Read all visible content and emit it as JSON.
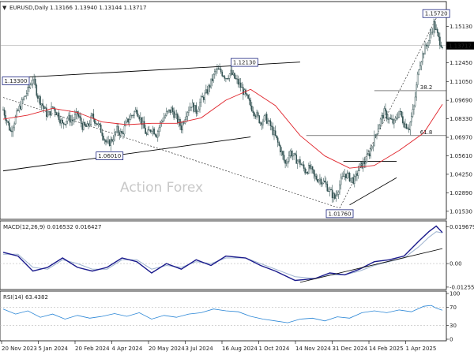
{
  "symbol_line": {
    "symbol": "EURUSD,Daily",
    "ohlc": "1.13166 1.13940 1.13144 1.13717"
  },
  "watermark": "Action Forex",
  "colors": {
    "candle": "#2f4f4f",
    "ma": "#e0242b",
    "macd": "#1a1a8c",
    "signal": "#9fb4d0",
    "rsi": "#2a86d6",
    "trendline": "#000000",
    "price_box": "#1a237e"
  },
  "chart_data": [
    {
      "type": "candlestick",
      "panel": "price",
      "ylim": [
        1.0094,
        1.1695
      ],
      "y_ticks": [
        "1.15130",
        "1.13717",
        "1.12450",
        "1.11050",
        "1.09690",
        "1.08330",
        "1.06970",
        "1.05610",
        "1.04250",
        "1.02890",
        "1.01530"
      ],
      "last_price": "1.13717",
      "x_ticks": [
        "20 Nov 2023",
        "5 Jan 2024",
        "20 Feb 2024",
        "4 Apr 2024",
        "20 May 2024",
        "3 Jul 2024",
        "16 Aug 2024",
        "1 Oct 2024",
        "14 Nov 2024",
        "31 Dec 2024",
        "14 Feb 2025",
        "1 Apr 2025"
      ],
      "close_path": [
        [
          0,
          1.09
        ],
        [
          6,
          1.074
        ],
        [
          12,
          1.089
        ],
        [
          16,
          1.097
        ],
        [
          20,
          1.104
        ],
        [
          24,
          1.113
        ],
        [
          28,
          1.1
        ],
        [
          32,
          1.093
        ],
        [
          36,
          1.085
        ],
        [
          40,
          1.092
        ],
        [
          44,
          1.087
        ],
        [
          48,
          1.079
        ],
        [
          52,
          1.084
        ],
        [
          56,
          1.082
        ],
        [
          60,
          1.087
        ],
        [
          64,
          1.078
        ],
        [
          68,
          1.077
        ],
        [
          72,
          1.085
        ],
        [
          76,
          1.08
        ],
        [
          80,
          1.073
        ],
        [
          84,
          1.064
        ],
        [
          88,
          1.068
        ],
        [
          92,
          1.075
        ],
        [
          96,
          1.072
        ],
        [
          100,
          1.081
        ],
        [
          104,
          1.086
        ],
        [
          108,
          1.09
        ],
        [
          112,
          1.081
        ],
        [
          116,
          1.071
        ],
        [
          120,
          1.077
        ],
        [
          124,
          1.072
        ],
        [
          128,
          1.082
        ],
        [
          132,
          1.087
        ],
        [
          136,
          1.09
        ],
        [
          140,
          1.084
        ],
        [
          144,
          1.077
        ],
        [
          148,
          1.088
        ],
        [
          152,
          1.094
        ],
        [
          156,
          1.089
        ],
        [
          160,
          1.097
        ],
        [
          164,
          1.102
        ],
        [
          168,
          1.11
        ],
        [
          172,
          1.119
        ],
        [
          176,
          1.118
        ],
        [
          180,
          1.114
        ],
        [
          184,
          1.117
        ],
        [
          188,
          1.112
        ],
        [
          192,
          1.107
        ],
        [
          196,
          1.1
        ],
        [
          200,
          1.093
        ],
        [
          204,
          1.087
        ],
        [
          208,
          1.081
        ],
        [
          212,
          1.084
        ],
        [
          216,
          1.078
        ],
        [
          220,
          1.07
        ],
        [
          224,
          1.061
        ],
        [
          228,
          1.05
        ],
        [
          232,
          1.059
        ],
        [
          236,
          1.054
        ],
        [
          240,
          1.051
        ],
        [
          244,
          1.045
        ],
        [
          248,
          1.047
        ],
        [
          252,
          1.04
        ],
        [
          256,
          1.039
        ],
        [
          260,
          1.036
        ],
        [
          264,
          1.03
        ],
        [
          268,
          1.025
        ],
        [
          272,
          1.035
        ],
        [
          276,
          1.043
        ],
        [
          280,
          1.04
        ],
        [
          284,
          1.038
        ],
        [
          288,
          1.048
        ],
        [
          292,
          1.051
        ],
        [
          296,
          1.058
        ],
        [
          300,
          1.069
        ],
        [
          304,
          1.08
        ],
        [
          308,
          1.088
        ],
        [
          312,
          1.083
        ],
        [
          316,
          1.08
        ],
        [
          320,
          1.089
        ],
        [
          324,
          1.08
        ],
        [
          328,
          1.077
        ],
        [
          332,
          1.092
        ],
        [
          336,
          1.122
        ],
        [
          340,
          1.133
        ],
        [
          344,
          1.141
        ],
        [
          348,
          1.153
        ],
        [
          352,
          1.142
        ],
        [
          355,
          1.13717
        ]
      ],
      "moving_average": [
        [
          0,
          1.083
        ],
        [
          20,
          1.086
        ],
        [
          40,
          1.091
        ],
        [
          60,
          1.088
        ],
        [
          80,
          1.081
        ],
        [
          100,
          1.079
        ],
        [
          120,
          1.08
        ],
        [
          140,
          1.08
        ],
        [
          160,
          1.084
        ],
        [
          180,
          1.097
        ],
        [
          200,
          1.105
        ],
        [
          220,
          1.093
        ],
        [
          240,
          1.071
        ],
        [
          260,
          1.056
        ],
        [
          280,
          1.047
        ],
        [
          300,
          1.049
        ],
        [
          320,
          1.06
        ],
        [
          340,
          1.073
        ],
        [
          355,
          1.094
        ]
      ],
      "annotations": [
        {
          "text": "1.13300",
          "x": 28,
          "y": 1.113
        },
        {
          "text": "1.12130",
          "x": 195,
          "y": 1.1213
        },
        {
          "text": "1.06010",
          "x": 86,
          "y": 1.0601
        },
        {
          "text": "1.01760",
          "x": 272,
          "y": 1.0176
        },
        {
          "text": "1.15720",
          "x": 350,
          "y": 1.1572
        },
        {
          "text": "38.2",
          "x": 337,
          "y": 1.104
        },
        {
          "text": "61.8",
          "x": 337,
          "y": 1.071
        }
      ],
      "levels": {
        "fib_38_2": 1.104,
        "fib_61_8": 1.071,
        "last": 1.13717
      }
    },
    {
      "type": "line",
      "panel": "macd",
      "title": "MACD(12,26,9) 0.016532 0.016427",
      "ylim": [
        -0.013,
        0.0215
      ],
      "y_ticks": [
        "0.019679",
        "0.00",
        "-0.012552"
      ],
      "series": [
        {
          "name": "MACD",
          "points": [
            [
              0,
              0.006
            ],
            [
              12,
              0.004
            ],
            [
              24,
              -0.004
            ],
            [
              36,
              -0.002
            ],
            [
              48,
              0.003
            ],
            [
              60,
              -0.002
            ],
            [
              72,
              -0.004
            ],
            [
              84,
              -0.002
            ],
            [
              96,
              0.003
            ],
            [
              108,
              0.001
            ],
            [
              120,
              -0.005
            ],
            [
              132,
              0.0
            ],
            [
              144,
              -0.003
            ],
            [
              156,
              0.002
            ],
            [
              168,
              -0.001
            ],
            [
              180,
              0.004
            ],
            [
              196,
              0.003
            ],
            [
              208,
              -0.001
            ],
            [
              220,
              -0.004
            ],
            [
              236,
              -0.009
            ],
            [
              252,
              -0.008
            ],
            [
              264,
              -0.005
            ],
            [
              276,
              -0.006
            ],
            [
              288,
              -0.003
            ],
            [
              300,
              0.001
            ],
            [
              312,
              0.002
            ],
            [
              324,
              0.004
            ],
            [
              336,
              0.012
            ],
            [
              344,
              0.017
            ],
            [
              350,
              0.02
            ],
            [
              355,
              0.016532
            ]
          ]
        },
        {
          "name": "Signal",
          "points": [
            [
              0,
              0.005
            ],
            [
              12,
              0.005
            ],
            [
              24,
              -0.002
            ],
            [
              36,
              -0.003
            ],
            [
              48,
              0.002
            ],
            [
              60,
              0.0
            ],
            [
              72,
              -0.003
            ],
            [
              84,
              -0.003
            ],
            [
              96,
              0.002
            ],
            [
              108,
              0.002
            ],
            [
              120,
              -0.003
            ],
            [
              132,
              -0.001
            ],
            [
              144,
              -0.002
            ],
            [
              156,
              0.001
            ],
            [
              168,
              0.0
            ],
            [
              180,
              0.003
            ],
            [
              196,
              0.003
            ],
            [
              208,
              0.0
            ],
            [
              220,
              -0.003
            ],
            [
              236,
              -0.007
            ],
            [
              252,
              -0.008
            ],
            [
              264,
              -0.006
            ],
            [
              276,
              -0.006
            ],
            [
              288,
              -0.004
            ],
            [
              300,
              -0.001
            ],
            [
              312,
              0.001
            ],
            [
              324,
              0.003
            ],
            [
              336,
              0.009
            ],
            [
              344,
              0.014
            ],
            [
              350,
              0.017
            ],
            [
              355,
              0.016427
            ]
          ]
        }
      ]
    },
    {
      "type": "line",
      "panel": "rsi",
      "title": "RSI(14) 63.4382",
      "ylim": [
        0,
        100
      ],
      "y_ticks": [
        "100",
        "70",
        "30",
        "0"
      ],
      "levels": [
        70,
        30
      ],
      "series": [
        {
          "name": "RSI",
          "points": [
            [
              0,
              66
            ],
            [
              10,
              55
            ],
            [
              20,
              62
            ],
            [
              30,
              48
            ],
            [
              40,
              55
            ],
            [
              50,
              44
            ],
            [
              60,
              52
            ],
            [
              70,
              46
            ],
            [
              80,
              50
            ],
            [
              90,
              56
            ],
            [
              100,
              50
            ],
            [
              110,
              58
            ],
            [
              120,
              44
            ],
            [
              130,
              52
            ],
            [
              140,
              48
            ],
            [
              150,
              55
            ],
            [
              160,
              58
            ],
            [
              170,
              66
            ],
            [
              180,
              62
            ],
            [
              190,
              60
            ],
            [
              200,
              50
            ],
            [
              210,
              44
            ],
            [
              220,
              40
            ],
            [
              230,
              36
            ],
            [
              240,
              44
            ],
            [
              250,
              46
            ],
            [
              260,
              40
            ],
            [
              270,
              49
            ],
            [
              280,
              46
            ],
            [
              290,
              58
            ],
            [
              300,
              62
            ],
            [
              310,
              58
            ],
            [
              320,
              64
            ],
            [
              330,
              60
            ],
            [
              340,
              72
            ],
            [
              346,
              74
            ],
            [
              350,
              68
            ],
            [
              355,
              63.4382
            ]
          ]
        }
      ]
    }
  ]
}
